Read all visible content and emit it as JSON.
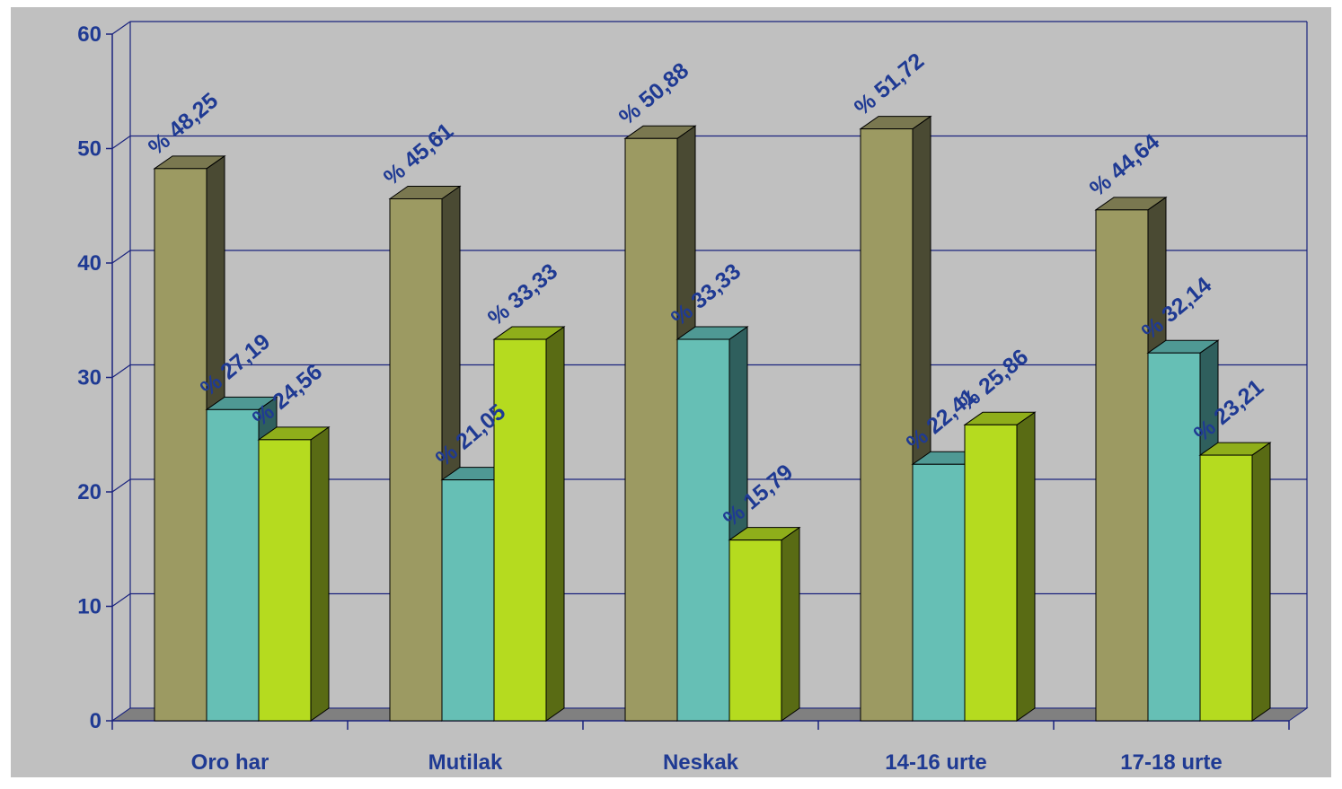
{
  "chart_data": {
    "type": "bar",
    "categories": [
      "Oro har",
      "Mutilak",
      "Neskak",
      "14-16 urte",
      "17-18 urte"
    ],
    "series": [
      {
        "values": [
          48.25,
          45.61,
          50.88,
          51.72,
          44.64
        ],
        "labels": [
          "% 48,25",
          "% 45,61",
          "% 50,88",
          "% 51,72",
          "% 44,64"
        ]
      },
      {
        "values": [
          27.19,
          21.05,
          33.33,
          22.41,
          32.14
        ],
        "labels": [
          "% 27,19",
          "% 21,05",
          "% 33,33",
          "% 22,41",
          "% 32,14"
        ]
      },
      {
        "values": [
          24.56,
          33.33,
          15.79,
          25.86,
          23.21
        ],
        "labels": [
          "% 24,56",
          "% 33,33",
          "% 15,79",
          "% 25,86",
          "% 23,21"
        ]
      }
    ],
    "y_ticks": [
      "0",
      "10",
      "20",
      "30",
      "40",
      "50",
      "60"
    ],
    "ylim": [
      0,
      60
    ],
    "grid": true,
    "legend": "none",
    "style": "3d-columns",
    "colors": {
      "background": "#C0C0C0",
      "text": "#1F3A93",
      "axis": "#1A237E",
      "series": [
        {
          "front": "#9C9A62",
          "side": "#4A4A33",
          "top": "#7A7850"
        },
        {
          "front": "#66BFB5",
          "side": "#2F5F5D",
          "top": "#4F9994"
        },
        {
          "front": "#B5DB1F",
          "side": "#596B14",
          "top": "#8FAE1A"
        }
      ]
    }
  }
}
